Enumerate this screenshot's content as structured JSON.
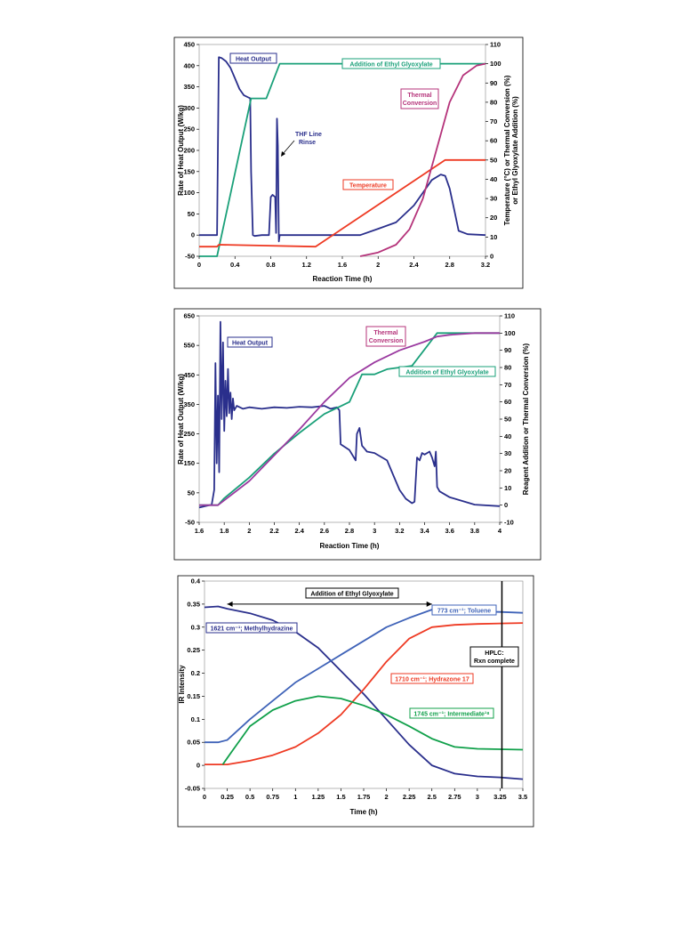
{
  "colors": {
    "blue": "#2a2f8c",
    "green": "#1aa079",
    "red": "#ee3a23",
    "magenta": "#b5337a",
    "lightblue": "#3f63b8",
    "irgreen": "#10a04a"
  },
  "chart_data": [
    {
      "type": "line",
      "xlabel": "Reaction Time (h)",
      "ylabel": "Rate of Heat Output (W/kg)",
      "y2label_line1": "Temperature (°C) or Thermal Conversion (%)",
      "y2label_line2": "or Ethyl Glyoxylate Addition (%)",
      "xlim": [
        0,
        3.2
      ],
      "ylim": [
        -50,
        450
      ],
      "y2lim": [
        0,
        110
      ],
      "xticks": [
        "0",
        "0.4",
        "0.8",
        "1.2",
        "1.6",
        "2",
        "2.4",
        "2.8",
        "3.2"
      ],
      "yticks": [
        "-50",
        "0",
        "50",
        "100",
        "150",
        "200",
        "250",
        "300",
        "350",
        "400",
        "450"
      ],
      "y2ticks": [
        "0",
        "10",
        "20",
        "30",
        "40",
        "50",
        "60",
        "70",
        "80",
        "90",
        "100",
        "110"
      ],
      "annotations": {
        "heat": "Heat Output",
        "addition": "Addition of Ethyl Glyoxylate",
        "thermal_1": "Thermal",
        "thermal_2": "Conversion",
        "thf_1": "THF Line",
        "thf_2": "Rinse",
        "temperature": "Temperature"
      },
      "series": [
        {
          "key": "heat",
          "axis": "left",
          "color": "#2a2f8c",
          "x": [
            0,
            0.2,
            0.22,
            0.25,
            0.3,
            0.35,
            0.4,
            0.45,
            0.5,
            0.55,
            0.57,
            0.58,
            0.6,
            0.62,
            0.7,
            0.78,
            0.8,
            0.82,
            0.85,
            0.86,
            0.87,
            0.88,
            0.89,
            0.9,
            0.92,
            1.0,
            1.5,
            1.8,
            2.0,
            2.2,
            2.4,
            2.5,
            2.6,
            2.7,
            2.75,
            2.8,
            2.85,
            2.9,
            3.0,
            3.2
          ],
          "y": [
            0,
            0,
            420,
            418,
            410,
            395,
            370,
            345,
            330,
            325,
            323,
            150,
            0,
            -2,
            0,
            0,
            90,
            95,
            90,
            5,
            275,
            210,
            -15,
            0,
            0,
            0,
            0,
            0,
            15,
            30,
            70,
            100,
            130,
            143,
            140,
            110,
            60,
            10,
            2,
            0
          ]
        },
        {
          "key": "addition",
          "axis": "right",
          "color": "#1aa079",
          "x": [
            0,
            0.2,
            0.58,
            0.75,
            0.9,
            3.2
          ],
          "y": [
            0,
            0,
            82,
            82,
            100,
            100
          ]
        },
        {
          "key": "temperature",
          "axis": "right",
          "color": "#ee3a23",
          "x": [
            0,
            0.2,
            0.22,
            1.3,
            2.75,
            3.2
          ],
          "y": [
            5,
            5,
            6,
            5,
            50,
            50
          ]
        },
        {
          "key": "thermal",
          "axis": "right",
          "color": "#b5337a",
          "x": [
            1.8,
            2.0,
            2.2,
            2.35,
            2.5,
            2.65,
            2.8,
            2.95,
            3.1,
            3.2
          ],
          "y": [
            0,
            2,
            6,
            14,
            30,
            55,
            80,
            94,
            99,
            100
          ]
        }
      ]
    },
    {
      "type": "line",
      "xlabel": "Reaction Time (h)",
      "ylabel": "Rate of Heat Output (W/kg)",
      "y2label_line1": "Reagent Addition or Thermal Conversion (%)",
      "xlim": [
        1.6,
        4.0
      ],
      "ylim": [
        -50,
        650
      ],
      "y2lim": [
        -10,
        110
      ],
      "xticks": [
        "1.6",
        "1.8",
        "2",
        "2.2",
        "2.4",
        "2.6",
        "2.8",
        "3",
        "3.2",
        "3.4",
        "3.6",
        "3.8",
        "4"
      ],
      "yticks": [
        "-50",
        "50",
        "150",
        "250",
        "350",
        "450",
        "550",
        "650"
      ],
      "y2ticks": [
        "-10",
        "0",
        "10",
        "20",
        "30",
        "40",
        "50",
        "60",
        "70",
        "80",
        "90",
        "100",
        "110"
      ],
      "annotations": {
        "heat": "Heat Output",
        "thermal_1": "Thermal",
        "thermal_2": "Conversion",
        "addition": "Addition of Ethyl Glyoxylate"
      },
      "series": [
        {
          "key": "heat",
          "axis": "left",
          "color": "#2a2f8c",
          "x": [
            1.6,
            1.7,
            1.72,
            1.73,
            1.74,
            1.75,
            1.76,
            1.77,
            1.78,
            1.79,
            1.8,
            1.81,
            1.82,
            1.83,
            1.84,
            1.85,
            1.86,
            1.87,
            1.88,
            1.9,
            1.95,
            2.0,
            2.1,
            2.2,
            2.3,
            2.4,
            2.5,
            2.6,
            2.65,
            2.7,
            2.72,
            2.73,
            2.8,
            2.85,
            2.86,
            2.88,
            2.9,
            2.92,
            2.94,
            3.0,
            3.1,
            3.15,
            3.2,
            3.25,
            3.3,
            3.32,
            3.34,
            3.36,
            3.38,
            3.4,
            3.44,
            3.46,
            3.48,
            3.49,
            3.5,
            3.52,
            3.6,
            3.8,
            4.0
          ],
          "y": [
            0,
            10,
            60,
            490,
            150,
            380,
            120,
            630,
            300,
            560,
            260,
            430,
            310,
            470,
            320,
            390,
            300,
            370,
            330,
            345,
            335,
            340,
            335,
            340,
            338,
            342,
            340,
            345,
            335,
            340,
            330,
            215,
            195,
            160,
            250,
            270,
            210,
            200,
            190,
            185,
            160,
            110,
            60,
            30,
            15,
            20,
            170,
            160,
            185,
            180,
            190,
            170,
            140,
            190,
            70,
            55,
            35,
            10,
            5
          ]
        },
        {
          "key": "addition",
          "axis": "right",
          "color": "#1aa079",
          "x": [
            1.6,
            1.75,
            1.8,
            2.0,
            2.2,
            2.4,
            2.6,
            2.8,
            2.9,
            3.0,
            3.1,
            3.3,
            3.5,
            3.6,
            3.8,
            4.0
          ],
          "y": [
            0,
            0,
            4,
            16,
            30,
            42,
            53,
            60,
            76,
            76,
            79,
            81,
            100,
            100,
            100,
            100
          ]
        },
        {
          "key": "thermal",
          "axis": "right",
          "color": "#9b3aa0",
          "x": [
            1.6,
            1.75,
            2.0,
            2.2,
            2.4,
            2.6,
            2.8,
            3.0,
            3.2,
            3.4,
            3.5,
            3.6,
            3.8,
            4.0
          ],
          "y": [
            0,
            0,
            14,
            29,
            44,
            60,
            74,
            83,
            90,
            95,
            98,
            99,
            100,
            100
          ]
        }
      ]
    },
    {
      "type": "line",
      "xlabel": "Time (h)",
      "ylabel": "IR Intensity",
      "xlim": [
        0,
        3.5
      ],
      "ylim": [
        -0.05,
        0.4
      ],
      "xticks": [
        "0",
        "0.25",
        "0.5",
        "0.75",
        "1",
        "1.25",
        "1.5",
        "1.75",
        "2",
        "2.25",
        "2.5",
        "2.75",
        "3",
        "3.25",
        "3.5"
      ],
      "yticks": [
        "-0.05",
        "0",
        "0.05",
        "0.1",
        "0.15",
        "0.2",
        "0.25",
        "0.3",
        "0.35",
        "0.4"
      ],
      "vline_x": 3.27,
      "arrow_x": [
        0.25,
        2.5
      ],
      "annotations": {
        "addition": "Addition of Ethyl Glyoxylate",
        "methylhydrazine": "1621 cm⁻¹; Methylhydrazine",
        "toluene": "773 cm⁻¹; Toluene",
        "hplc_1": "HPLC:",
        "hplc_2": "Rxn complete",
        "hydrazone": "1710 cm⁻¹; Hydrazone 17",
        "intermediate": "1745 cm⁻¹; Intermediate¹⁸"
      },
      "series": [
        {
          "key": "methylhydrazine",
          "color": "#2a2f8c",
          "x": [
            0,
            0.15,
            0.25,
            0.5,
            0.75,
            1.0,
            1.25,
            1.5,
            1.75,
            2.0,
            2.25,
            2.5,
            2.75,
            3.0,
            3.25,
            3.5
          ],
          "y": [
            0.343,
            0.345,
            0.34,
            0.33,
            0.315,
            0.29,
            0.255,
            0.205,
            0.155,
            0.1,
            0.045,
            0.0,
            -0.018,
            -0.024,
            -0.026,
            -0.03
          ]
        },
        {
          "key": "toluene",
          "color": "#3f63b8",
          "x": [
            0,
            0.15,
            0.25,
            0.5,
            0.75,
            1.0,
            1.25,
            1.5,
            1.75,
            2.0,
            2.25,
            2.5,
            2.75,
            3.0,
            3.25,
            3.5
          ],
          "y": [
            0.05,
            0.05,
            0.055,
            0.1,
            0.14,
            0.18,
            0.21,
            0.24,
            0.27,
            0.3,
            0.32,
            0.338,
            0.336,
            0.334,
            0.333,
            0.331
          ]
        },
        {
          "key": "hydrazone",
          "color": "#ee3a23",
          "x": [
            0,
            0.25,
            0.5,
            0.75,
            1.0,
            1.25,
            1.5,
            1.75,
            2.0,
            2.25,
            2.5,
            2.75,
            3.0,
            3.25,
            3.5
          ],
          "y": [
            0.002,
            0.002,
            0.01,
            0.022,
            0.04,
            0.07,
            0.11,
            0.165,
            0.225,
            0.275,
            0.3,
            0.305,
            0.307,
            0.308,
            0.309
          ]
        },
        {
          "key": "intermediate",
          "color": "#10a04a",
          "x": [
            0.2,
            0.3,
            0.5,
            0.75,
            1.0,
            1.25,
            1.5,
            1.75,
            2.0,
            2.25,
            2.5,
            2.75,
            3.0,
            3.25,
            3.5
          ],
          "y": [
            0.002,
            0.03,
            0.085,
            0.12,
            0.14,
            0.15,
            0.145,
            0.13,
            0.11,
            0.085,
            0.058,
            0.04,
            0.036,
            0.035,
            0.034
          ]
        }
      ]
    }
  ]
}
